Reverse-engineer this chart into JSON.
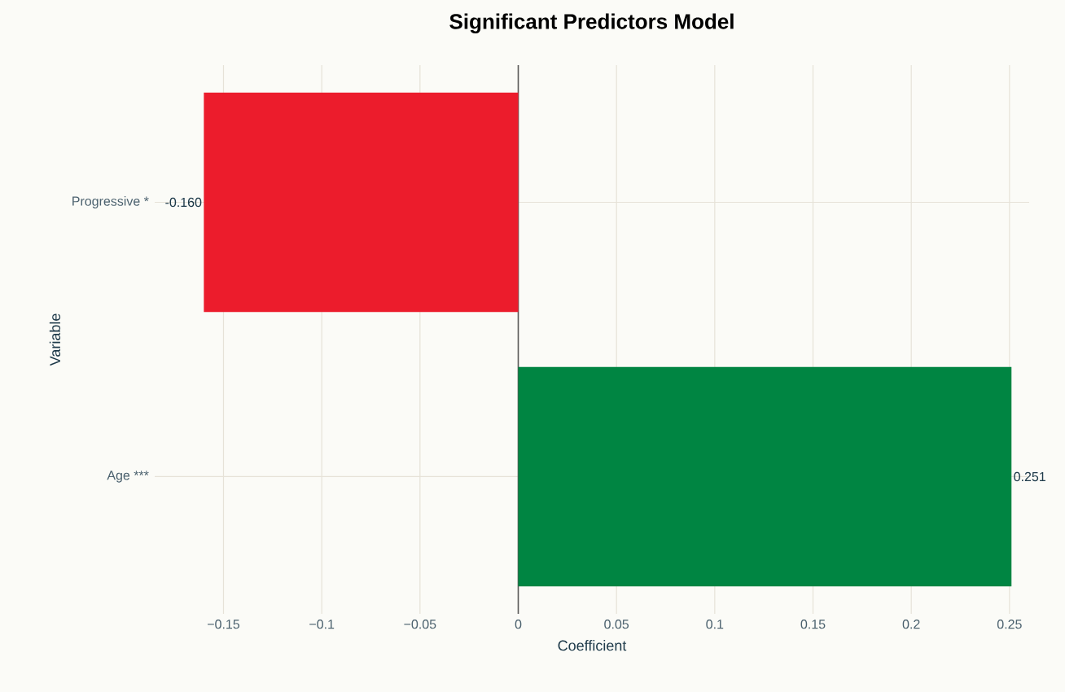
{
  "chart_data": {
    "type": "bar",
    "orientation": "horizontal",
    "title": "Significant Predictors Model",
    "xlabel": "Coefficient",
    "ylabel": "Variable",
    "categories": [
      "Progressive *",
      "Age ***"
    ],
    "values": [
      -0.16,
      0.251
    ],
    "colors": [
      "#ec1c2c",
      "#008542"
    ],
    "value_labels": [
      "-0.160",
      "0.251"
    ],
    "xlim": [
      -0.185,
      0.26
    ],
    "xticks": [
      {
        "value": -0.15,
        "label": "−0.15"
      },
      {
        "value": -0.1,
        "label": "−0.1"
      },
      {
        "value": -0.05,
        "label": "−0.05"
      },
      0,
      0.05,
      0.1,
      0.15,
      0.2,
      0.25
    ],
    "grid": true
  }
}
